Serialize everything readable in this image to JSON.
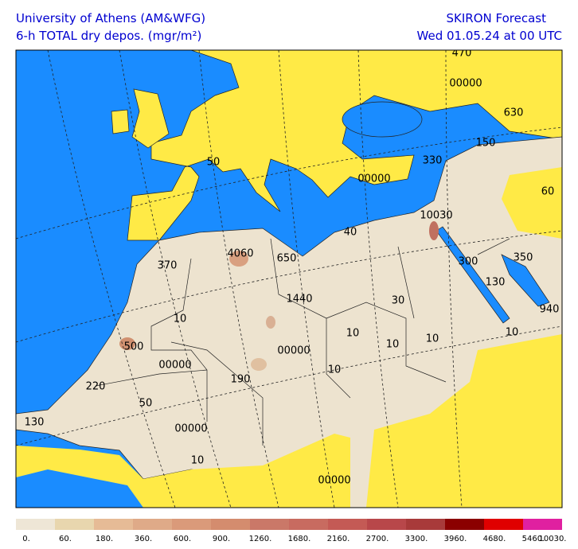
{
  "header": {
    "left_line1": "University of Athens (AM&WFG)",
    "left_line2": "6-h TOTAL dry depos. (mgr/m²)",
    "right_line1": "SKIRON Forecast",
    "right_line2": "Wed 01.05.24 at 00 UTC"
  },
  "map_labels": [
    "470",
    "00000",
    "630",
    "150",
    "330",
    "60",
    "00000",
    "10030",
    "50",
    "4060",
    "650",
    "40",
    "370",
    "300",
    "350",
    "130",
    "1440",
    "30",
    "940",
    "10",
    "10",
    "10",
    "10",
    "10",
    "500",
    "00000",
    "00000",
    "190",
    "10",
    "220",
    "50",
    "130",
    "00000",
    "10",
    "00000"
  ],
  "colorbar": {
    "colors": [
      "#eee6d6",
      "#e8d6ae",
      "#e6bb96",
      "#dfaa88",
      "#da9a7a",
      "#d48c6e",
      "#ca7868",
      "#c86b60",
      "#c45a55",
      "#b8474a",
      "#a83a3a",
      "#8b0000",
      "#e00000",
      "#e020a0"
    ],
    "labels": [
      "0.",
      "60.",
      "180.",
      "360.",
      "600.",
      "900.",
      "1260.",
      "1680.",
      "2160.",
      "2700.",
      "3300.",
      "3960.",
      "4680.",
      "5460.",
      "10030."
    ]
  }
}
